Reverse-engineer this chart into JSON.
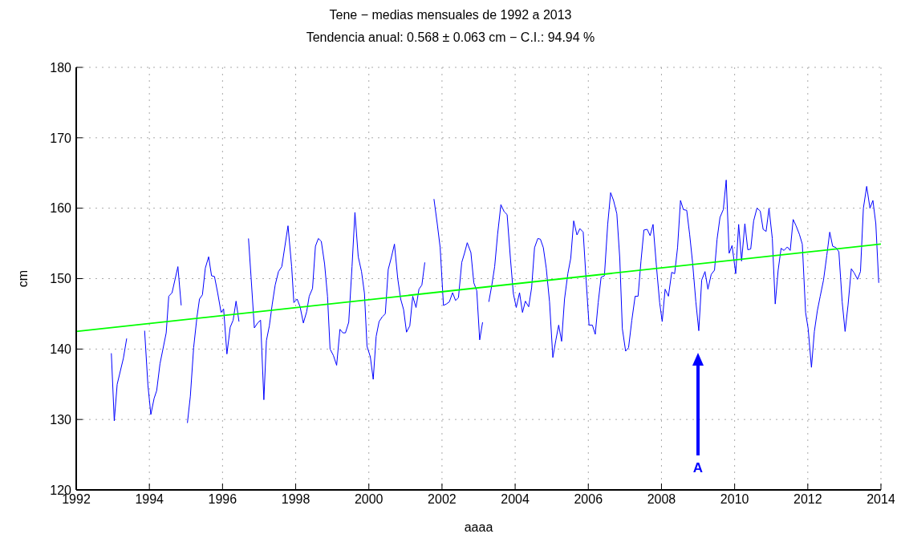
{
  "chart_data": {
    "type": "line",
    "title": "Tene − medias mensuales de 1992 a 2013",
    "subtitle": "Tendencia anual: 0.568 ± 0.063 cm − C.I.: 94.94 %",
    "xlabel": "aaaa",
    "ylabel": "cm",
    "xlim": [
      1992,
      2014
    ],
    "xticks": [
      1992,
      1994,
      1996,
      1998,
      2000,
      2002,
      2004,
      2006,
      2008,
      2010,
      2012,
      2014
    ],
    "ylim": [
      120,
      180
    ],
    "yticks": [
      120,
      130,
      140,
      150,
      160,
      170,
      180
    ],
    "grid": true,
    "marker": "none",
    "line_style": "solid",
    "annotations": [
      "A"
    ],
    "series": [
      {
        "color": "#0000ff",
        "x": [
          1992.96,
          1993.04,
          1993.12,
          1993.29,
          1993.38,
          1993.6,
          1993.87,
          1993.96,
          1994.04,
          1994.13,
          1994.2,
          1994.29,
          1994.46,
          1994.53,
          1994.62,
          1994.78,
          1994.87,
          1994.95,
          1995.04,
          1995.12,
          1995.21,
          1995.3,
          1995.37,
          1995.45,
          1995.53,
          1995.62,
          1995.7,
          1995.78,
          1995.87,
          1995.96,
          1996.03,
          1996.12,
          1996.21,
          1996.29,
          1996.37,
          1996.45,
          1996.58,
          1996.71,
          1996.78,
          1996.87,
          1996.96,
          1997.04,
          1997.13,
          1997.2,
          1997.28,
          1997.36,
          1997.44,
          1997.53,
          1997.62,
          1997.79,
          1997.89,
          1997.95,
          1998.04,
          1998.12,
          1998.21,
          1998.3,
          1998.37,
          1998.46,
          1998.54,
          1998.62,
          1998.7,
          1998.79,
          1998.87,
          1998.94,
          1999.03,
          1999.12,
          1999.21,
          1999.29,
          1999.36,
          1999.45,
          1999.54,
          1999.62,
          1999.71,
          1999.8,
          1999.88,
          1999.95,
          2000.04,
          2000.12,
          2000.2,
          2000.28,
          2000.37,
          2000.45,
          2000.53,
          2000.61,
          2000.7,
          2000.79,
          2000.87,
          2000.95,
          2001.03,
          2001.12,
          2001.2,
          2001.29,
          2001.37,
          2001.45,
          2001.53,
          2001.65,
          2001.78,
          2001.87,
          2001.95,
          2002.04,
          2002.12,
          2002.2,
          2002.29,
          2002.37,
          2002.45,
          2002.54,
          2002.62,
          2002.69,
          2002.79,
          2002.87,
          2002.95,
          2003.03,
          2003.11,
          2003.2,
          2003.28,
          2003.36,
          2003.44,
          2003.52,
          2003.61,
          2003.7,
          2003.78,
          2003.87,
          2003.95,
          2004.03,
          2004.12,
          2004.2,
          2004.28,
          2004.37,
          2004.45,
          2004.53,
          2004.62,
          2004.69,
          2004.77,
          2004.85,
          2004.94,
          2005.03,
          2005.11,
          2005.19,
          2005.27,
          2005.35,
          2005.44,
          2005.52,
          2005.6,
          2005.69,
          2005.77,
          2005.86,
          2005.94,
          2006.02,
          2006.11,
          2006.19,
          2006.27,
          2006.35,
          2006.44,
          2006.53,
          2006.61,
          2006.69,
          2006.78,
          2006.86,
          2006.93,
          2007.02,
          2007.1,
          2007.19,
          2007.28,
          2007.36,
          2007.44,
          2007.52,
          2007.61,
          2007.69,
          2007.77,
          2007.86,
          2007.95,
          2008.02,
          2008.1,
          2008.19,
          2008.28,
          2008.36,
          2008.44,
          2008.52,
          2008.6,
          2008.69,
          2008.77,
          2008.85,
          2008.94,
          2009.02,
          2009.1,
          2009.19,
          2009.27,
          2009.36,
          2009.45,
          2009.52,
          2009.6,
          2009.69,
          2009.77,
          2009.85,
          2009.93,
          2010.03,
          2010.11,
          2010.19,
          2010.28,
          2010.36,
          2010.44,
          2010.52,
          2010.61,
          2010.7,
          2010.78,
          2010.86,
          2010.94,
          2011.03,
          2011.11,
          2011.19,
          2011.27,
          2011.35,
          2011.44,
          2011.52,
          2011.6,
          2011.68,
          2011.77,
          2011.85,
          2011.94,
          2012.01,
          2012.1,
          2012.18,
          2012.26,
          2012.34,
          2012.43,
          2012.52,
          2012.6,
          2012.68,
          2012.77,
          2012.85,
          2012.94,
          2013.02,
          2013.1,
          2013.19,
          2013.27,
          2013.36,
          2013.44,
          2013.52,
          2013.61,
          2013.7,
          2013.78,
          2013.86,
          2013.94
        ],
        "values": [
          139.4,
          129.8,
          135.0,
          138.7,
          141.5,
          null,
          142.6,
          134.9,
          130.7,
          133.0,
          134.1,
          137.9,
          142.3,
          147.5,
          148.0,
          151.7,
          146.2,
          null,
          129.5,
          133.3,
          140.2,
          144.5,
          147.1,
          147.7,
          151.5,
          153.1,
          150.4,
          150.3,
          147.9,
          145.2,
          145.7,
          139.3,
          143.1,
          144.1,
          146.8,
          143.9,
          null,
          155.7,
          150.2,
          143.0,
          143.7,
          144.1,
          132.8,
          141.2,
          143.3,
          146.4,
          149.1,
          151.0,
          151.7,
          157.5,
          151.7,
          146.6,
          147.1,
          146.0,
          143.7,
          145.3,
          147.5,
          148.6,
          154.6,
          155.7,
          155.3,
          152.1,
          147.5,
          140.0,
          139.1,
          137.7,
          142.8,
          142.3,
          142.3,
          143.8,
          151.7,
          159.4,
          153.1,
          151.0,
          147.9,
          140.4,
          138.9,
          135.7,
          141.8,
          143.9,
          144.6,
          145.0,
          151.3,
          152.9,
          154.9,
          150.0,
          147.1,
          145.6,
          142.4,
          143.3,
          147.5,
          145.9,
          148.5,
          149.1,
          152.3,
          null,
          161.3,
          157.8,
          154.4,
          146.2,
          146.4,
          146.7,
          148.0,
          146.9,
          147.3,
          152.3,
          153.7,
          155.1,
          153.7,
          149.4,
          148.3,
          141.3,
          143.8,
          null,
          146.7,
          149.0,
          151.7,
          156.3,
          160.5,
          159.5,
          159.1,
          152.9,
          147.9,
          145.9,
          148.0,
          145.2,
          146.8,
          146.0,
          148.7,
          154.4,
          155.7,
          155.6,
          154.4,
          151.5,
          146.7,
          138.8,
          141.2,
          143.4,
          141.1,
          147.1,
          150.7,
          152.9,
          158.2,
          156.2,
          157.1,
          156.6,
          149.8,
          143.4,
          143.4,
          142.1,
          146.6,
          150.2,
          150.4,
          157.7,
          162.2,
          161.1,
          159.2,
          152.9,
          142.9,
          139.7,
          140.2,
          144.1,
          147.5,
          147.5,
          152.5,
          156.9,
          157.0,
          156.1,
          157.7,
          151.9,
          146.6,
          143.9,
          148.5,
          147.5,
          150.9,
          150.7,
          154.4,
          161.1,
          159.8,
          159.7,
          156.3,
          152.3,
          146.7,
          142.6,
          149.8,
          151.0,
          148.5,
          150.6,
          151.2,
          155.6,
          158.7,
          159.8,
          164.0,
          153.6,
          154.7,
          150.7,
          157.7,
          152.5,
          157.8,
          154.1,
          154.2,
          158.2,
          160.0,
          159.6,
          157.0,
          156.7,
          160.0,
          155.7,
          146.4,
          151.2,
          154.3,
          154.0,
          154.5,
          154.0,
          158.4,
          157.5,
          156.3,
          154.9,
          145.2,
          142.9,
          137.4,
          142.5,
          145.4,
          147.5,
          149.8,
          153.3,
          156.6,
          154.6,
          154.4,
          153.8,
          146.7,
          142.5,
          146.2,
          151.4,
          150.8,
          149.9,
          151.0,
          160.0,
          163.1,
          160.0,
          161.1,
          157.8,
          149.4
        ]
      },
      {
        "color": "#00ff00",
        "x": [
          1992,
          2014
        ],
        "values": [
          142.5,
          154.9
        ]
      }
    ]
  }
}
